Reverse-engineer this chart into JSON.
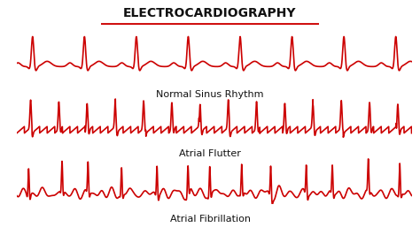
{
  "title": "ELECTROCARDIOGRAPHY",
  "title_color": "#111111",
  "title_underline_color": "#cc0000",
  "ecg_color": "#cc0000",
  "label_color": "#111111",
  "background_color": "#ffffff",
  "labels": [
    "Normal Sinus Rhythm",
    "Atrial Flutter",
    "Atrial Fibrillation"
  ],
  "line_width": 1.2,
  "title_fontsize": 10,
  "label_fontsize": 8
}
